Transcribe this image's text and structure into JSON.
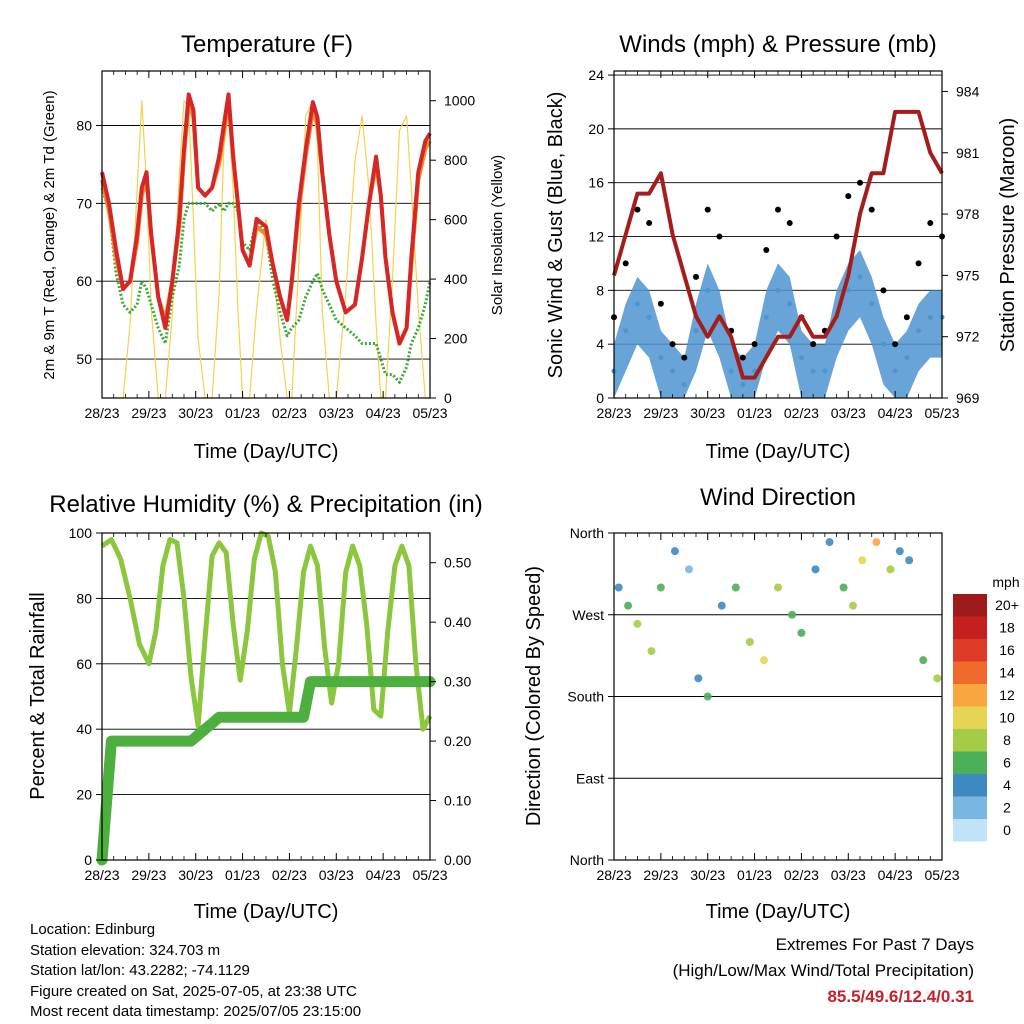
{
  "panels": {
    "temperature": {
      "title": "Temperature (F)",
      "xlabel": "Time (Day/UTC)",
      "ylabel_left": "2m & 9m T (Red, Orange) & 2m Td (Green)",
      "ylabel_right": "Solar Insolation (Yellow)",
      "x_ticks": [
        "28/23",
        "29/23",
        "30/23",
        "01/23",
        "02/23",
        "03/23",
        "04/23",
        "05/23"
      ],
      "y_ticks_left": [
        "50",
        "60",
        "70",
        "80"
      ],
      "y_ticks_right": [
        "0",
        "200",
        "400",
        "600",
        "800",
        "1000"
      ]
    },
    "winds": {
      "title": "Winds (mph) & Pressure (mb)",
      "xlabel": "Time (Day/UTC)",
      "ylabel_left": "Sonic Wind & Gust (Blue, Black)",
      "ylabel_right": "Station Pressure (Maroon)",
      "x_ticks": [
        "28/23",
        "29/23",
        "30/23",
        "01/23",
        "02/23",
        "03/23",
        "04/23",
        "05/23"
      ],
      "y_ticks_left": [
        "0",
        "4",
        "8",
        "12",
        "16",
        "20",
        "24"
      ],
      "y_ticks_right": [
        "969",
        "972",
        "975",
        "978",
        "981",
        "984"
      ]
    },
    "humidity": {
      "title": "Relative Humidity (%) & Precipitation (in)",
      "xlabel": "Time (Day/UTC)",
      "ylabel_left": "Percent & Total Rainfall",
      "x_ticks": [
        "28/23",
        "29/23",
        "30/23",
        "01/23",
        "02/23",
        "03/23",
        "04/23",
        "05/23"
      ],
      "y_ticks_left": [
        "0",
        "20",
        "40",
        "60",
        "80",
        "100"
      ],
      "y_ticks_right": [
        "0.00",
        "0.10",
        "0.20",
        "0.30",
        "0.40",
        "0.50"
      ]
    },
    "direction": {
      "title": "Wind Direction",
      "xlabel": "Time (Day/UTC)",
      "ylabel_left": "Direction (Colored By Speed)",
      "x_ticks": [
        "28/23",
        "29/23",
        "30/23",
        "01/23",
        "02/23",
        "03/23",
        "04/23",
        "05/23"
      ],
      "y_ticks_left": [
        "North",
        "East",
        "South",
        "West",
        "North"
      ],
      "legend_title": "mph",
      "legend_labels": [
        "20+",
        "18",
        "16",
        "14",
        "12",
        "10",
        "8",
        "6",
        "4",
        "2",
        "0"
      ],
      "legend_colors": [
        "#9e1a1a",
        "#c4201f",
        "#dd3a27",
        "#ef6a2c",
        "#f8a640",
        "#e6d552",
        "#a4cc47",
        "#4caf58",
        "#3d89c0",
        "#79b6e2",
        "#bfe4f7"
      ]
    }
  },
  "footer": {
    "location": "Location: Edinburg",
    "elevation": "Station elevation: 324.703 m",
    "latlon": "Station lat/lon: 43.2282; -74.1129",
    "created": "Figure created on Sat, 2025-07-05, at 23:38 UTC",
    "timestamp": "Most recent data timestamp: 2025/07/05 23:15:00",
    "extremes_title": "Extremes For Past 7 Days",
    "extremes_subtitle": "(High/Low/Max Wind/Total Precipitation)",
    "extremes_values": "85.5/49.6/12.4/0.31"
  },
  "chart_data": [
    {
      "type": "line",
      "title": "Temperature (F)",
      "xlabel": "Time (Day/UTC)",
      "ylabel": "2m & 9m T (Red, Orange) & 2m Td (Green)",
      "y2label": "Solar Insolation (Yellow)",
      "xlim": [
        0,
        7
      ],
      "ylim": [
        45,
        87
      ],
      "y2lim": [
        0,
        1100
      ],
      "x_tick_labels": [
        "28/23",
        "29/23",
        "30/23",
        "01/23",
        "02/23",
        "03/23",
        "04/23",
        "05/23"
      ],
      "x": [
        0,
        0.15,
        0.3,
        0.45,
        0.6,
        0.75,
        0.85,
        0.95,
        1.05,
        1.2,
        1.35,
        1.5,
        1.65,
        1.75,
        1.85,
        1.95,
        2.05,
        2.2,
        2.35,
        2.5,
        2.6,
        2.7,
        2.8,
        2.9,
        3.0,
        3.15,
        3.3,
        3.5,
        3.65,
        3.8,
        3.95,
        4.05,
        4.2,
        4.35,
        4.5,
        4.6,
        4.7,
        4.85,
        5.0,
        5.2,
        5.4,
        5.55,
        5.7,
        5.85,
        5.95,
        6.05,
        6.2,
        6.35,
        6.5,
        6.6,
        6.75,
        6.9,
        7.0
      ],
      "series": [
        {
          "name": "2m T",
          "color": "#d62728",
          "values": [
            74,
            70,
            64,
            59,
            60,
            66,
            72,
            74,
            66,
            58,
            54,
            60,
            68,
            77,
            84,
            82,
            72,
            71,
            72,
            76,
            80,
            84,
            76,
            70,
            64,
            62,
            68,
            67,
            62,
            58,
            55,
            60,
            70,
            77,
            83,
            81,
            74,
            66,
            60,
            56,
            57,
            63,
            70,
            76,
            71,
            63,
            56,
            52,
            54,
            63,
            74,
            78,
            79
          ]
        },
        {
          "name": "9m T",
          "color": "#f28c28",
          "values": [
            73,
            69,
            63,
            59,
            60,
            65,
            71,
            73,
            66,
            58,
            55,
            60,
            67,
            76,
            83,
            81,
            72,
            71,
            72,
            75,
            79,
            83,
            76,
            70,
            64,
            62,
            67,
            66,
            62,
            58,
            55,
            60,
            69,
            76,
            82,
            80,
            74,
            66,
            60,
            56,
            57,
            63,
            70,
            75,
            71,
            63,
            56,
            52,
            54,
            62,
            73,
            77,
            78
          ]
        },
        {
          "name": "2m Td",
          "color": "#3aaa35",
          "values": [
            72,
            69,
            61,
            57,
            56,
            57,
            60,
            59,
            57,
            54,
            52,
            58,
            62,
            68,
            70,
            70,
            70,
            70,
            69,
            70,
            69,
            70,
            70,
            69,
            65,
            64,
            68,
            66,
            60,
            56,
            53,
            54,
            55,
            58,
            60,
            61,
            59,
            57,
            55,
            54,
            53,
            52,
            52,
            52,
            50,
            48,
            48,
            47,
            49,
            52,
            54,
            57,
            60
          ]
        },
        {
          "name": "Solar Insolation",
          "color": "#f6d04d",
          "axis": "y2",
          "values": [
            0,
            0,
            0,
            0,
            250,
            700,
            1000,
            720,
            300,
            0,
            0,
            280,
            750,
            1000,
            980,
            600,
            200,
            0,
            0,
            350,
            850,
            950,
            700,
            300,
            0,
            0,
            300,
            600,
            450,
            200,
            0,
            0,
            450,
            950,
            1000,
            850,
            300,
            0,
            0,
            350,
            800,
            950,
            700,
            250,
            0,
            0,
            400,
            900,
            950,
            700,
            300,
            0,
            0
          ]
        }
      ]
    },
    {
      "type": "scatter",
      "title": "Winds (mph) & Pressure (mb)",
      "xlabel": "Time (Day/UTC)",
      "ylabel": "Sonic Wind & Gust (Blue, Black)",
      "y2label": "Station Pressure (Maroon)",
      "xlim": [
        0,
        7
      ],
      "ylim": [
        0,
        24.3
      ],
      "y2lim": [
        969,
        985
      ],
      "x_tick_labels": [
        "28/23",
        "29/23",
        "30/23",
        "01/23",
        "02/23",
        "03/23",
        "04/23",
        "05/23"
      ],
      "x": [
        0,
        0.25,
        0.5,
        0.75,
        1.0,
        1.25,
        1.5,
        1.75,
        2.0,
        2.25,
        2.5,
        2.75,
        3.0,
        3.25,
        3.5,
        3.75,
        4.0,
        4.25,
        4.5,
        4.75,
        5.0,
        5.25,
        5.5,
        5.75,
        6.0,
        6.25,
        6.5,
        6.75,
        7.0
      ],
      "series": [
        {
          "name": "Sonic Wind",
          "color": "#4e94d0",
          "values": [
            2,
            5,
            7,
            6,
            3,
            2,
            1,
            5,
            8,
            6,
            2,
            1,
            2,
            6,
            8,
            7,
            3,
            2,
            2,
            6,
            8,
            9,
            7,
            4,
            2,
            3,
            5,
            6,
            6
          ]
        },
        {
          "name": "Gust",
          "color": "#000000",
          "values": [
            6,
            10,
            14,
            13,
            7,
            4,
            3,
            9,
            14,
            12,
            5,
            3,
            4,
            11,
            14,
            13,
            6,
            4,
            5,
            12,
            15,
            16,
            14,
            8,
            4,
            6,
            10,
            13,
            12
          ]
        },
        {
          "name": "Station Pressure",
          "color": "#a51c1c",
          "axis": "y2",
          "values": [
            975,
            977,
            979,
            979,
            980,
            977,
            975,
            973,
            972,
            973,
            972,
            970,
            970,
            971,
            972,
            972,
            973,
            972,
            972,
            973,
            975,
            978,
            980,
            980,
            983,
            983,
            983,
            981,
            980
          ]
        }
      ]
    },
    {
      "type": "line",
      "title": "Relative Humidity (%) & Precipitation (in)",
      "xlabel": "Time (Day/UTC)",
      "ylabel": "Percent & Total Rainfall",
      "xlim": [
        0,
        7
      ],
      "ylim": [
        0,
        100
      ],
      "y2lim": [
        0,
        0.55
      ],
      "x_tick_labels": [
        "28/23",
        "29/23",
        "30/23",
        "01/23",
        "02/23",
        "03/23",
        "04/23",
        "05/23"
      ],
      "x": [
        0,
        0.2,
        0.4,
        0.6,
        0.8,
        1.0,
        1.15,
        1.3,
        1.45,
        1.6,
        1.75,
        1.9,
        2.05,
        2.2,
        2.35,
        2.5,
        2.65,
        2.8,
        2.95,
        3.1,
        3.25,
        3.4,
        3.55,
        3.7,
        3.85,
        4.0,
        4.15,
        4.3,
        4.45,
        4.6,
        4.75,
        4.9,
        5.05,
        5.2,
        5.35,
        5.5,
        5.65,
        5.8,
        5.95,
        6.1,
        6.25,
        6.4,
        6.55,
        6.7,
        6.85,
        7.0
      ],
      "series": [
        {
          "name": "Relative Humidity",
          "color": "#8cc63f",
          "values": [
            96,
            98,
            92,
            80,
            66,
            60,
            70,
            90,
            98,
            97,
            80,
            56,
            41,
            68,
            93,
            97,
            94,
            72,
            55,
            70,
            92,
            100,
            99,
            88,
            60,
            45,
            65,
            88,
            96,
            90,
            65,
            48,
            60,
            88,
            96,
            90,
            72,
            46,
            44,
            70,
            90,
            96,
            90,
            60,
            40,
            44
          ]
        },
        {
          "name": "Total Precipitation",
          "color": "#4caf3e",
          "axis": "y2",
          "values": [
            0,
            0.2,
            0.2,
            0.2,
            0.2,
            0.2,
            0.2,
            0.2,
            0.2,
            0.2,
            0.2,
            0.2,
            0.21,
            0.22,
            0.23,
            0.24,
            0.24,
            0.24,
            0.24,
            0.24,
            0.24,
            0.24,
            0.24,
            0.24,
            0.24,
            0.24,
            0.24,
            0.24,
            0.3,
            0.3,
            0.3,
            0.3,
            0.3,
            0.3,
            0.3,
            0.3,
            0.3,
            0.3,
            0.3,
            0.3,
            0.3,
            0.3,
            0.3,
            0.3,
            0.3,
            0.3
          ]
        }
      ]
    },
    {
      "type": "scatter",
      "title": "Wind Direction",
      "xlabel": "Time (Day/UTC)",
      "ylabel": "Direction (Colored By Speed)",
      "xlim": [
        0,
        7
      ],
      "ylim": [
        0,
        360
      ],
      "x_tick_labels": [
        "28/23",
        "29/23",
        "30/23",
        "01/23",
        "02/23",
        "03/23",
        "04/23",
        "05/23"
      ],
      "y_tick_labels": [
        "North",
        "East",
        "South",
        "West",
        "North"
      ],
      "legend_title": "mph",
      "x": [
        0.1,
        0.3,
        0.5,
        0.8,
        1.0,
        1.3,
        1.6,
        1.8,
        2.0,
        2.3,
        2.6,
        2.9,
        3.2,
        3.5,
        3.8,
        4.0,
        4.3,
        4.6,
        4.9,
        5.1,
        5.3,
        5.6,
        5.9,
        6.1,
        6.3,
        6.6,
        6.9
      ],
      "direction": [
        300,
        280,
        260,
        230,
        300,
        340,
        320,
        200,
        180,
        280,
        300,
        240,
        220,
        300,
        270,
        250,
        320,
        350,
        300,
        280,
        330,
        350,
        320,
        340,
        330,
        220,
        200
      ],
      "speed": [
        3,
        5,
        7,
        8,
        6,
        3,
        2,
        4,
        6,
        4,
        5,
        7,
        9,
        8,
        6,
        5,
        4,
        3,
        6,
        8,
        10,
        11,
        7,
        4,
        3,
        5,
        7
      ]
    }
  ]
}
